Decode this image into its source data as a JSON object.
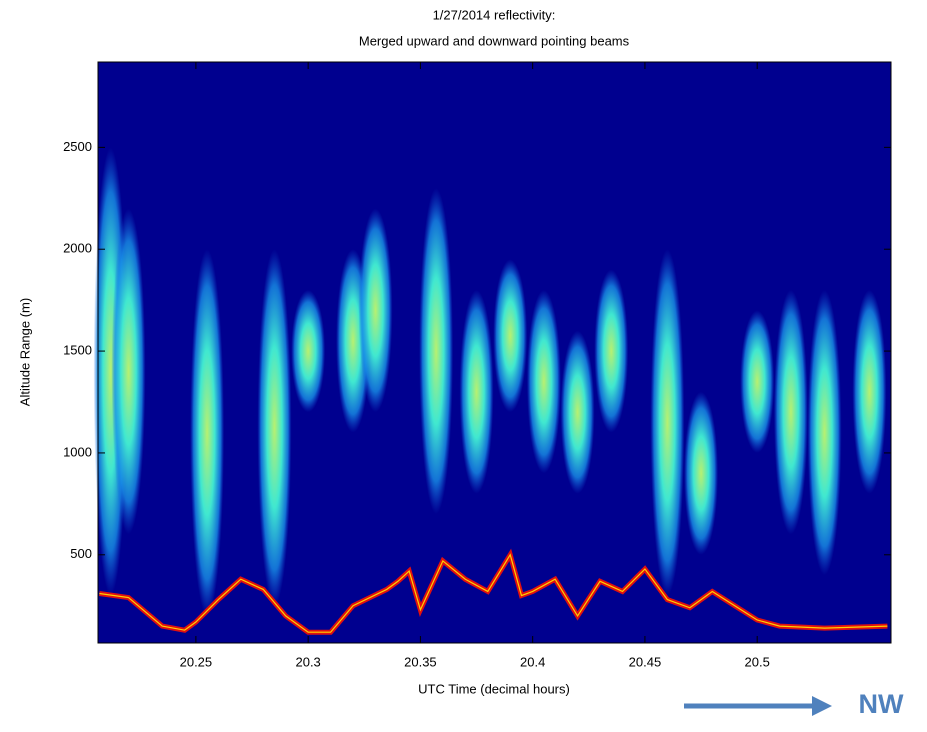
{
  "chart_data": {
    "type": "heatmap",
    "title": "1/27/2014 reflectivity:",
    "subtitle": "Merged upward and downward pointing beams",
    "x_label": "UTC Time (decimal hours)",
    "y_label": "Altitude Range (m)",
    "annotation": "NW",
    "xlim": [
      20.2064,
      20.5596
    ],
    "ylim": [
      67,
      2919
    ],
    "xticks": [
      20.25,
      20.3,
      20.35,
      20.4,
      20.45,
      20.5
    ],
    "yticks": [
      500,
      1000,
      1500,
      2000,
      2500
    ],
    "background": "#00008f",
    "ground_echo": {
      "color": "#e01010",
      "x": [
        20.207,
        20.22,
        20.235,
        20.245,
        20.25,
        20.26,
        20.27,
        20.28,
        20.29,
        20.3,
        20.31,
        20.32,
        20.335,
        20.34,
        20.345,
        20.35,
        20.36,
        20.37,
        20.38,
        20.39,
        20.395,
        20.4,
        20.41,
        20.42,
        20.43,
        20.44,
        20.45,
        20.46,
        20.47,
        20.48,
        20.49,
        20.5,
        20.51,
        20.53,
        20.558
      ],
      "values": [
        310,
        290,
        150,
        130,
        170,
        280,
        380,
        330,
        200,
        120,
        120,
        250,
        330,
        370,
        420,
        230,
        470,
        380,
        320,
        500,
        300,
        320,
        380,
        200,
        370,
        320,
        430,
        280,
        240,
        320,
        250,
        180,
        150,
        140,
        150
      ]
    },
    "cells": {
      "color": "#20c8f0",
      "x": [
        20.212,
        20.22,
        20.255,
        20.285,
        20.3,
        20.32,
        20.33,
        20.357,
        20.375,
        20.39,
        20.405,
        20.42,
        20.435,
        20.46,
        20.475,
        20.5,
        20.515,
        20.53,
        20.55
      ],
      "bottom": [
        300,
        600,
        200,
        250,
        1200,
        1100,
        1200,
        700,
        800,
        1200,
        900,
        800,
        1100,
        300,
        500,
        1000,
        600,
        400,
        800
      ],
      "top": [
        2500,
        2200,
        2000,
        2000,
        1800,
        2000,
        2200,
        2300,
        1800,
        1950,
        1800,
        1600,
        1900,
        2000,
        1300,
        1700,
        1800,
        1800,
        1800
      ]
    }
  }
}
